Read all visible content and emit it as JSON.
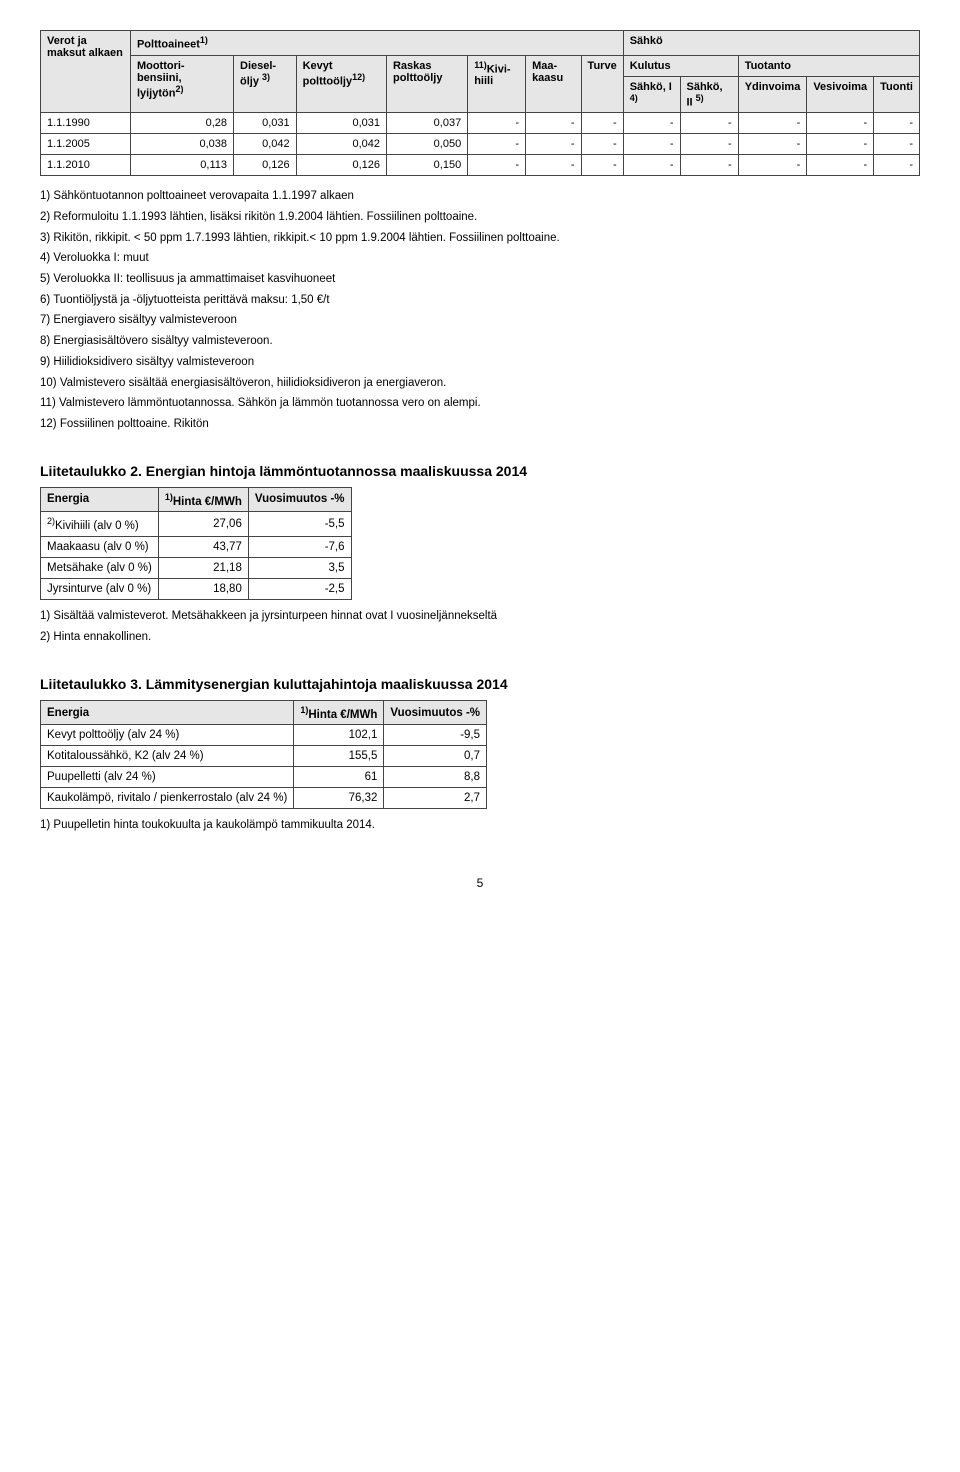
{
  "main_table": {
    "headers": {
      "col0": "Verot ja maksut alkaen",
      "poltto": "Polttoaineet",
      "poltto_sup": "1)",
      "sahko": "Sähkö",
      "kulutus": "Kulutus",
      "tuotanto": "Tuotanto",
      "c1": "Moottori-bensiini, lyijytön",
      "c1_sup": "2)",
      "c2": "Diesel-öljy ",
      "c2_sup": "3)",
      "c3": "Kevyt polttoöljy",
      "c3_sup": "12)",
      "c4": "Raskas polttoöljy",
      "c5_pre": "11)",
      "c5": "Kivi-hiili",
      "c6": "Maa-kaasu",
      "c7": "Turve",
      "c8": "Sähkö, I ",
      "c8_sup": "4)",
      "c9": "Sähkö, II ",
      "c9_sup": "5)",
      "c10": "Ydinvoima",
      "c11": "Vesivoima",
      "c12": "Tuonti"
    },
    "rows": [
      {
        "label": "1.1.1990",
        "v": [
          "0,28",
          "0,031",
          "0,031",
          "0,037",
          "-",
          "-",
          "-",
          "-",
          "-",
          "-",
          "-",
          "-"
        ]
      },
      {
        "label": "1.1.2005",
        "v": [
          "0,038",
          "0,042",
          "0,042",
          "0,050",
          "-",
          "-",
          "-",
          "-",
          "-",
          "-",
          "-",
          "-"
        ]
      },
      {
        "label": "1.1.2010",
        "v": [
          "0,113",
          "0,126",
          "0,126",
          "0,150",
          "-",
          "-",
          "-",
          "-",
          "-",
          "-",
          "-",
          "-"
        ]
      }
    ]
  },
  "main_notes": [
    "1) Sähköntuotannon polttoaineet verovapaita 1.1.1997 alkaen",
    "2) Reformuloitu 1.1.1993 lähtien, lisäksi rikitön 1.9.2004 lähtien. Fossiilinen polttoaine.",
    "3) Rikitön, rikkipit. < 50 ppm 1.7.1993 lähtien, rikkipit.< 10 ppm 1.9.2004 lähtien. Fossiilinen polttoaine.",
    "4) Veroluokka I: muut",
    "5) Veroluokka II: teollisuus ja ammattimaiset kasvihuoneet",
    "6) Tuontiöljystä ja -öljytuotteista perittävä maksu: 1,50 €/t",
    "7) Energiavero sisältyy valmisteveroon",
    "8) Energiasisältövero sisältyy valmisteveroon.",
    "9) Hiilidioksidivero sisältyy valmisteveroon",
    "10) Valmistevero sisältää energiasisältöveron, hiilidioksidiveron ja energiaveron.",
    "11) Valmistevero lämmöntuotannossa. Sähkön ja lämmön tuotannossa vero on alempi.",
    "12) Fossiilinen polttoaine. Rikitön"
  ],
  "liite2": {
    "title": "Liitetaulukko 2. Energian hintoja lämmöntuotannossa maaliskuussa 2014",
    "headers": {
      "c0": "Energia",
      "c1_pre": "1)",
      "c1": "Hinta €/MWh",
      "c2": "Vuosimuutos -%"
    },
    "rows": [
      {
        "label_pre": "2)",
        "label": "Kivihiili (alv 0 %)",
        "v1": "27,06",
        "v2": "-5,5"
      },
      {
        "label": "Maakaasu (alv 0 %)",
        "v1": "43,77",
        "v2": "-7,6"
      },
      {
        "label": "Metsähake (alv 0 %)",
        "v1": "21,18",
        "v2": "3,5"
      },
      {
        "label": "Jyrsinturve (alv 0 %)",
        "v1": "18,80",
        "v2": "-2,5"
      }
    ],
    "notes": [
      "1) Sisältää valmisteverot. Metsähakkeen ja jyrsinturpeen hinnat ovat I vuosineljännekseltä",
      "2) Hinta ennakollinen."
    ]
  },
  "liite3": {
    "title": "Liitetaulukko 3. Lämmitysenergian kuluttajahintoja maaliskuussa 2014",
    "headers": {
      "c0": "Energia",
      "c1_pre": "1)",
      "c1": "Hinta €/MWh",
      "c2": "Vuosimuutos -%"
    },
    "rows": [
      {
        "label": "Kevyt polttoöljy (alv 24 %)",
        "v1": "102,1",
        "v2": "-9,5"
      },
      {
        "label": "Kotitaloussähkö, K2 (alv 24 %)",
        "v1": "155,5",
        "v2": "0,7"
      },
      {
        "label": "Puupelletti (alv 24 %)",
        "v1": "61",
        "v2": "8,8"
      },
      {
        "label": "Kaukolämpö, rivitalo / pienkerrostalo (alv 24 %)",
        "v1": "76,32",
        "v2": "2,7"
      }
    ],
    "notes": [
      "1) Puupelletin hinta toukokuulta ja kaukolämpö tammikuulta 2014."
    ]
  },
  "pagenum": "5"
}
